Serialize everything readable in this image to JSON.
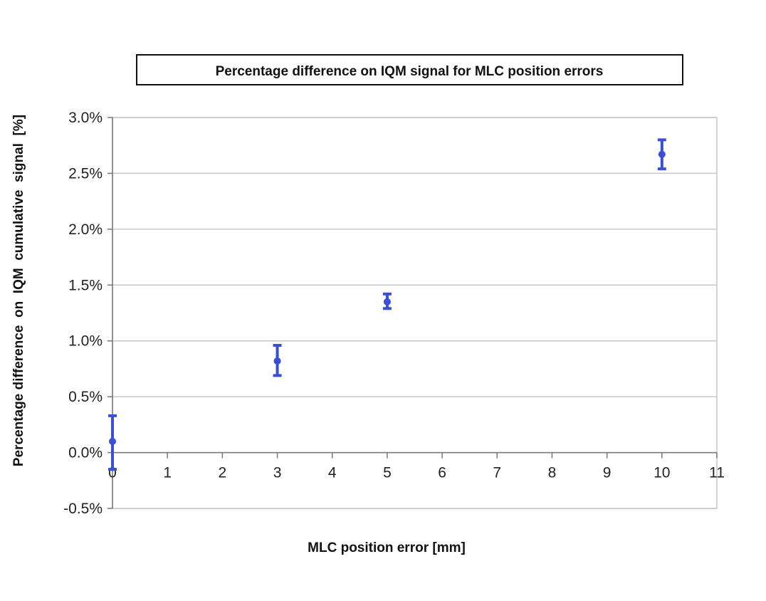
{
  "chart_data": {
    "type": "scatter",
    "title": "Percentage difference on IQM signal for MLC position errors",
    "xlabel": "MLC position error [mm]",
    "ylabel": "Percentage difference  on  IQM  cumulative  signal  [%]",
    "xlim": [
      0,
      11
    ],
    "ylim": [
      -0.5,
      3.0
    ],
    "x_ticks": [
      0,
      1,
      2,
      3,
      4,
      5,
      6,
      7,
      8,
      9,
      10,
      11
    ],
    "y_ticks": [
      "3.0%",
      "2.5%",
      "2.0%",
      "1.5%",
      "1.0%",
      "0.5%",
      "0.0%",
      "-0.5%"
    ],
    "y_tick_values": [
      3.0,
      2.5,
      2.0,
      1.5,
      1.0,
      0.5,
      0.0,
      -0.5
    ],
    "grid": "horizontal",
    "legend": "none",
    "series": [
      {
        "color": "#3b4fd6",
        "points": [
          {
            "x": 0,
            "y": 0.1,
            "err_low": -0.15,
            "err_high": 0.33
          },
          {
            "x": 3,
            "y": 0.82,
            "err_low": 0.69,
            "err_high": 0.96
          },
          {
            "x": 5,
            "y": 1.35,
            "err_low": 1.29,
            "err_high": 1.42
          },
          {
            "x": 10,
            "y": 2.67,
            "err_low": 2.54,
            "err_high": 2.8
          }
        ]
      }
    ]
  }
}
